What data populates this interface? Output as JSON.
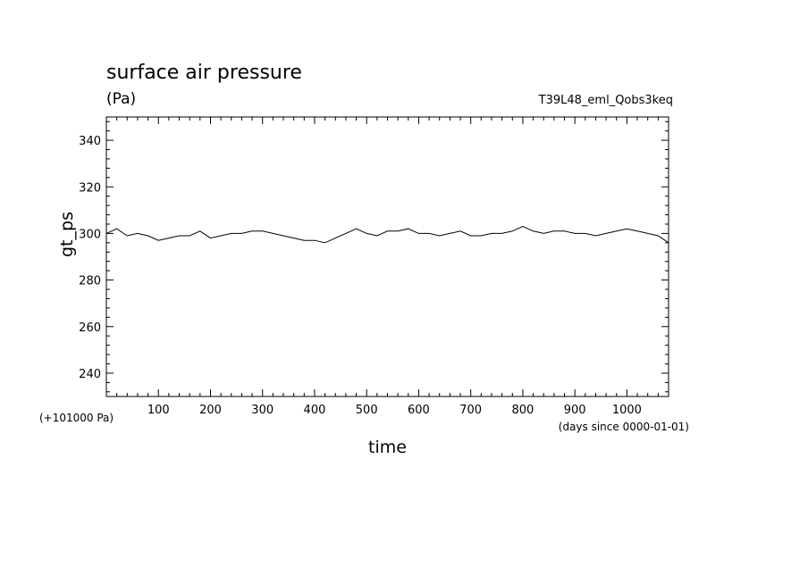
{
  "chart_data": {
    "type": "line",
    "title": "surface air pressure",
    "units": "(Pa)",
    "run_id": "T39L48_eml_Qobs3keq",
    "xlabel": "time",
    "ylabel": "gt_ps",
    "y_offset_label": "(+101000 Pa)",
    "x_units_label": "(days since 0000-01-01)",
    "xlim": [
      0,
      1080
    ],
    "ylim": [
      230,
      350
    ],
    "x_ticks": [
      100,
      200,
      300,
      400,
      500,
      600,
      700,
      800,
      900,
      1000
    ],
    "y_ticks": [
      240,
      260,
      280,
      300,
      320,
      340
    ],
    "grid": false,
    "series": [
      {
        "x": [
          0,
          20,
          40,
          60,
          80,
          100,
          120,
          140,
          160,
          180,
          200,
          220,
          240,
          260,
          280,
          300,
          320,
          340,
          360,
          380,
          400,
          420,
          440,
          460,
          480,
          500,
          520,
          540,
          560,
          580,
          600,
          620,
          640,
          660,
          680,
          700,
          720,
          740,
          760,
          780,
          800,
          820,
          840,
          860,
          880,
          900,
          920,
          940,
          960,
          980,
          1000,
          1020,
          1040,
          1060,
          1080
        ],
        "values": [
          300,
          302,
          299,
          300,
          299,
          297,
          298,
          299,
          299,
          301,
          298,
          299,
          300,
          300,
          301,
          301,
          300,
          299,
          298,
          297,
          297,
          296,
          298,
          300,
          302,
          300,
          299,
          301,
          301,
          302,
          300,
          300,
          299,
          300,
          301,
          299,
          299,
          300,
          300,
          301,
          303,
          301,
          300,
          301,
          301,
          300,
          300,
          299,
          300,
          301,
          302,
          301,
          300,
          299,
          296
        ]
      }
    ]
  }
}
